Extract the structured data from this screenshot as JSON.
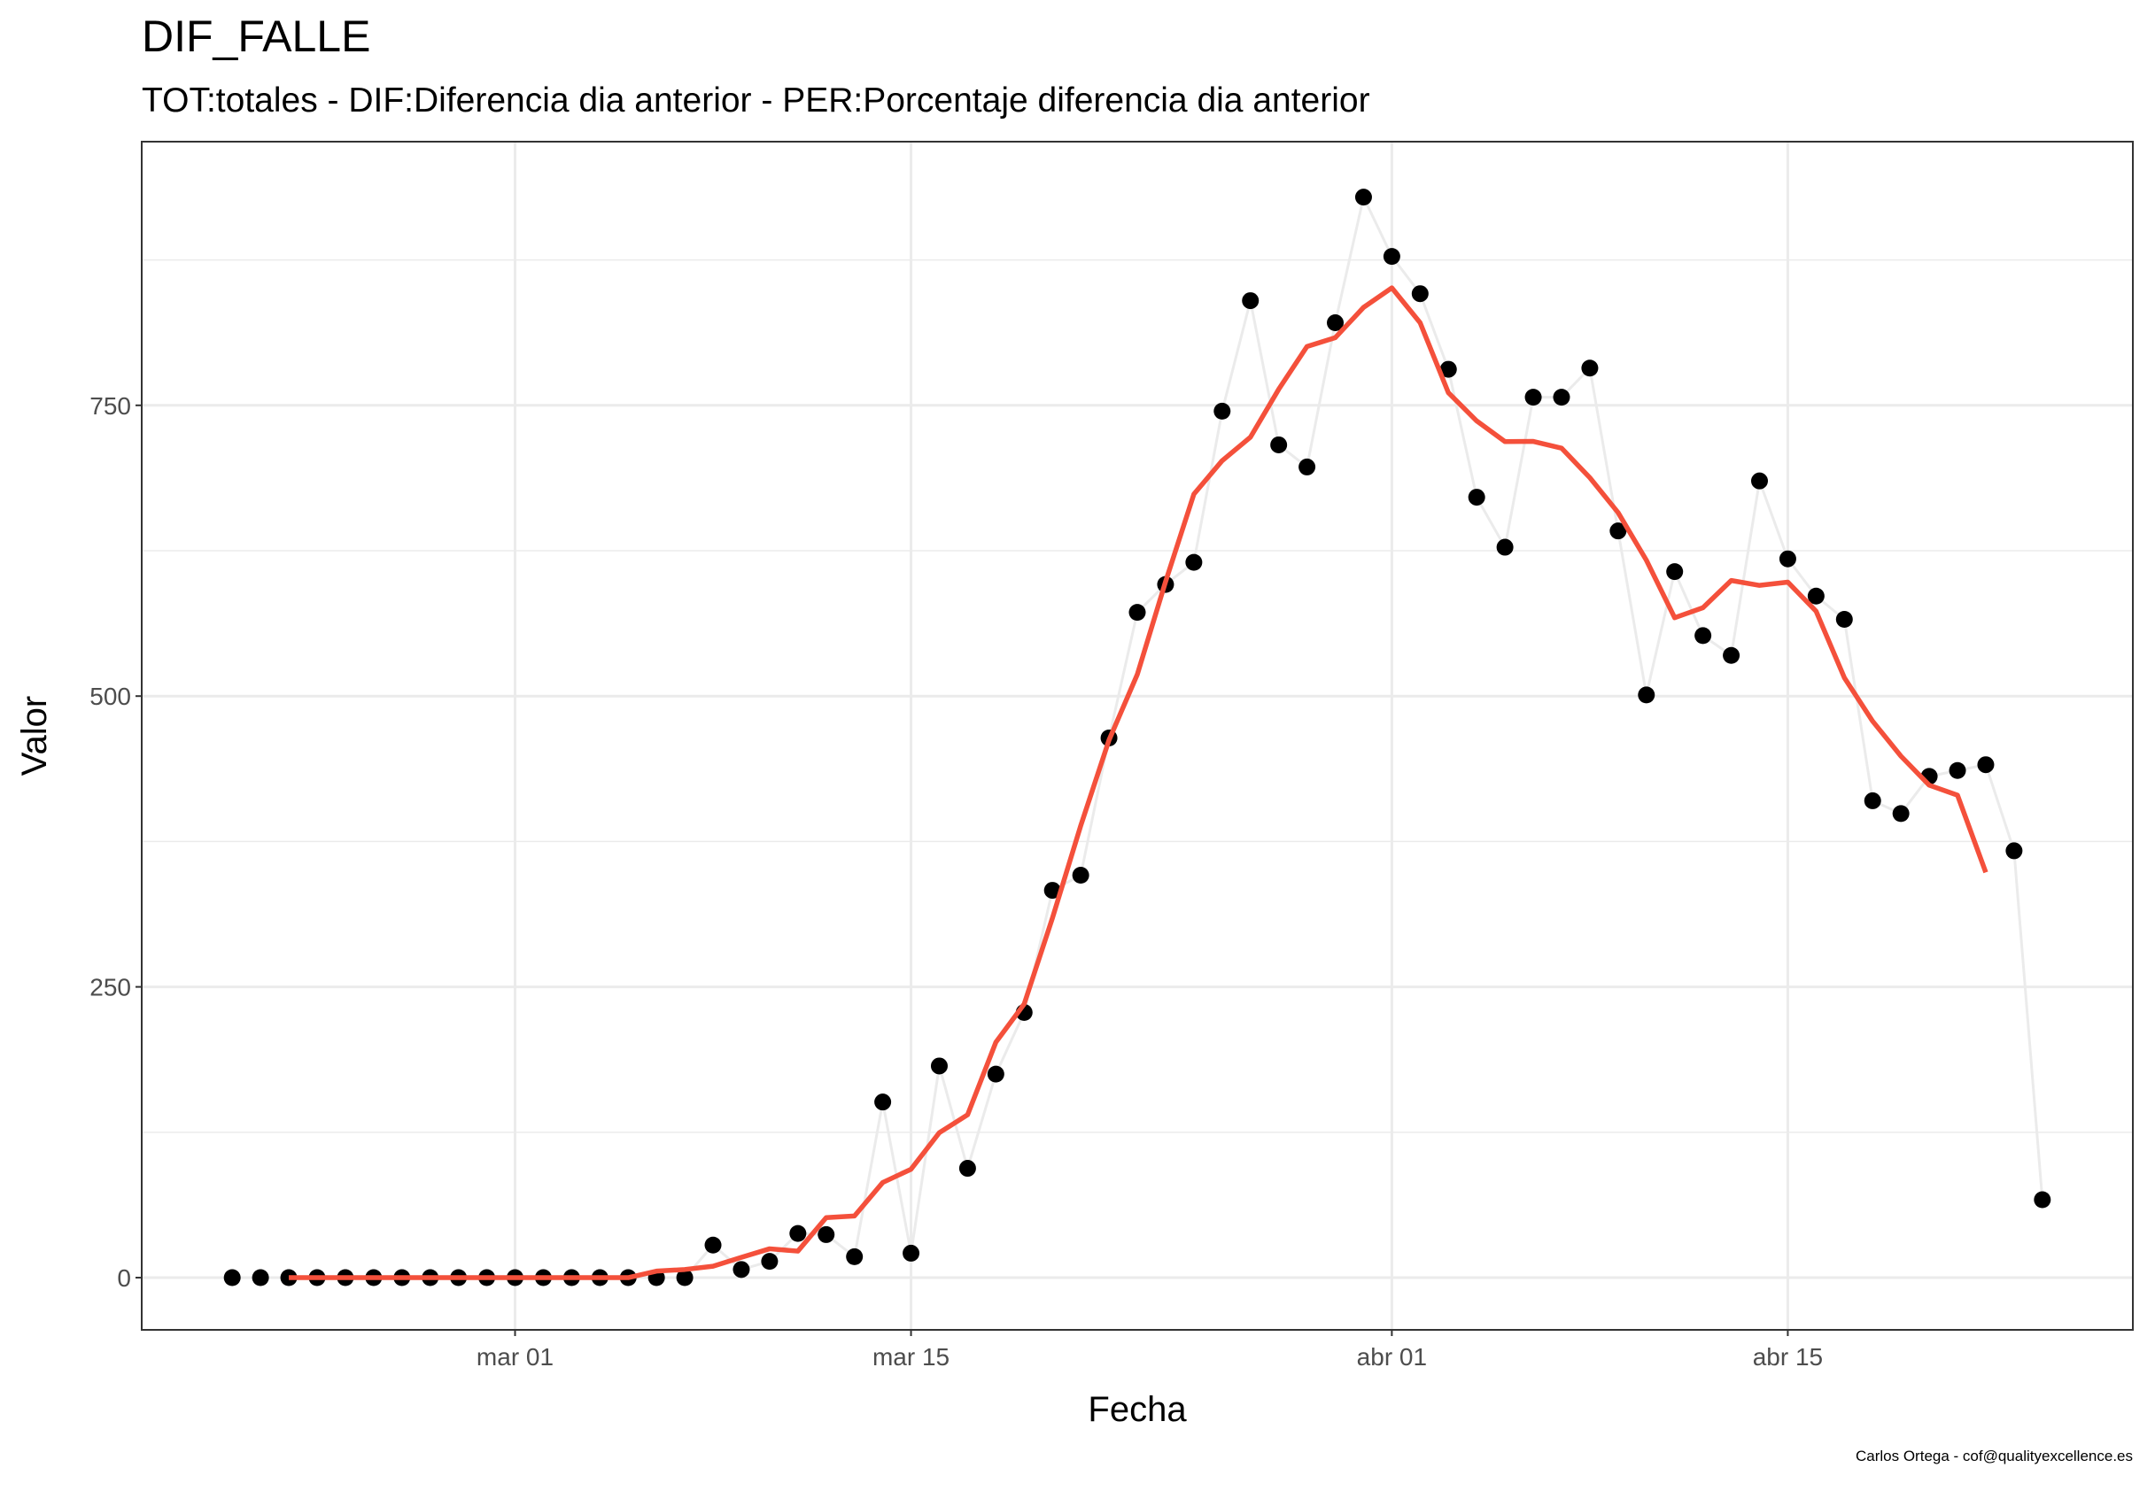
{
  "chart_data": {
    "type": "line",
    "title": "DIF_FALLE",
    "subtitle": "TOT:totales - DIF:Diferencia dia anterior - PER:Porcentaje diferencia dia anterior",
    "x_label": "Fecha",
    "y_label": "Valor",
    "caption": "Carlos Ortega - cof@qualityexcellence.es",
    "x": [
      "02-20",
      "02-21",
      "02-22",
      "02-23",
      "02-24",
      "02-25",
      "02-26",
      "02-27",
      "02-28",
      "02-29",
      "03-01",
      "03-02",
      "03-03",
      "03-04",
      "03-05",
      "03-06",
      "03-07",
      "03-08",
      "03-09",
      "03-10",
      "03-11",
      "03-12",
      "03-13",
      "03-14",
      "03-15",
      "03-16",
      "03-17",
      "03-18",
      "03-19",
      "03-20",
      "03-21",
      "03-22",
      "03-23",
      "03-24",
      "03-25",
      "03-26",
      "03-27",
      "03-28",
      "03-29",
      "03-30",
      "03-31",
      "04-01",
      "04-02",
      "04-03",
      "04-04",
      "04-05",
      "04-06",
      "04-07",
      "04-08",
      "04-09",
      "04-10",
      "04-11",
      "04-12",
      "04-13",
      "04-14",
      "04-15",
      "04-16",
      "04-17",
      "04-18",
      "04-19",
      "04-20",
      "04-21",
      "04-22",
      "04-23",
      "04-24"
    ],
    "xticks": [
      {
        "value": "03-01",
        "label": "mar 01"
      },
      {
        "value": "03-15",
        "label": "mar 15"
      },
      {
        "value": "04-01",
        "label": "abr 01"
      },
      {
        "value": "04-15",
        "label": "abr 15"
      }
    ],
    "ylim": [
      -44.9,
      976.7
    ],
    "yticks": [
      0,
      250,
      500,
      750
    ],
    "minor_yticks": [
      125,
      375,
      625,
      875
    ],
    "grid": true,
    "series": [
      {
        "color": "#000000",
        "line_color": "#ebebeb",
        "markers": true,
        "values": [
          0,
          0,
          0,
          0,
          0,
          0,
          0,
          0,
          0,
          0,
          0,
          0,
          0,
          0,
          0,
          0,
          0,
          28,
          7,
          14,
          38,
          37,
          18,
          151,
          21,
          182,
          94,
          175,
          228,
          333,
          346,
          464,
          572,
          596,
          615,
          745,
          840,
          716,
          697,
          821,
          929,
          878,
          846,
          781,
          671,
          628,
          757,
          757,
          782,
          642,
          501,
          607,
          552,
          535,
          685,
          618,
          586,
          566,
          410,
          399,
          431,
          436,
          441,
          367,
          67
        ]
      },
      {
        "color": "#f4503b",
        "markers": false,
        "values": [
          null,
          null,
          0,
          0,
          0,
          0,
          0,
          0,
          0,
          0,
          0,
          0,
          0,
          0,
          0,
          5.6,
          7,
          9.8,
          17.4,
          24.8,
          22.8,
          51.6,
          53,
          81.8,
          93.2,
          124.6,
          140,
          202.4,
          235.2,
          309.2,
          388.6,
          462.2,
          518.6,
          598.4,
          673.6,
          702.4,
          722.6,
          763.8,
          800.6,
          808.2,
          834.2,
          851,
          821,
          760.8,
          736.6,
          718.8,
          719,
          713.2,
          687.8,
          657.8,
          616.8,
          567.4,
          576,
          599.4,
          595.2,
          598,
          573,
          515.8,
          478.4,
          448.4,
          423.4,
          414.8,
          348.4,
          null,
          null
        ]
      }
    ]
  }
}
